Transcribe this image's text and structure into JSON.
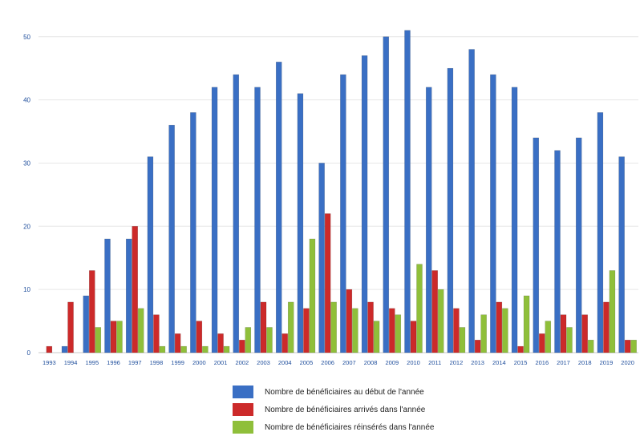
{
  "chart_data": {
    "type": "bar",
    "title": "",
    "xlabel": "",
    "ylabel": "",
    "ylim": [
      0,
      52
    ],
    "yticks": [
      0,
      10,
      20,
      30,
      40,
      50
    ],
    "grid": true,
    "legend_position": "bottom",
    "categories": [
      "1993",
      "1994",
      "1995",
      "1996",
      "1997",
      "1998",
      "1999",
      "2000",
      "2001",
      "2002",
      "2003",
      "2004",
      "2005",
      "2006",
      "2007",
      "2008",
      "2009",
      "2010",
      "2011",
      "2012",
      "2013",
      "2014",
      "2015",
      "2016",
      "2017",
      "2018",
      "2019",
      "2020"
    ],
    "series": [
      {
        "name": "Nombre de bénéficiaires au début de l'année",
        "color": "#3a6fc4",
        "values": [
          0,
          1,
          9,
          18,
          18,
          31,
          36,
          38,
          42,
          44,
          42,
          46,
          41,
          30,
          44,
          47,
          50,
          51,
          42,
          45,
          48,
          44,
          42,
          34,
          32,
          34,
          38,
          31
        ]
      },
      {
        "name": "Nombre de bénéficiaires arrivés dans l'année",
        "color": "#cc2a2a",
        "values": [
          1,
          8,
          13,
          5,
          20,
          6,
          3,
          5,
          3,
          2,
          8,
          3,
          7,
          22,
          10,
          8,
          7,
          5,
          13,
          7,
          2,
          8,
          1,
          3,
          6,
          6,
          8,
          2
        ]
      },
      {
        "name": "Nombre de bénéficiaires réinsérés dans l'année",
        "color": "#8fbf3a",
        "values": [
          0,
          0,
          4,
          5,
          7,
          1,
          1,
          1,
          1,
          4,
          4,
          8,
          18,
          8,
          7,
          5,
          6,
          14,
          10,
          4,
          6,
          7,
          9,
          5,
          4,
          2,
          13,
          2
        ]
      }
    ]
  }
}
